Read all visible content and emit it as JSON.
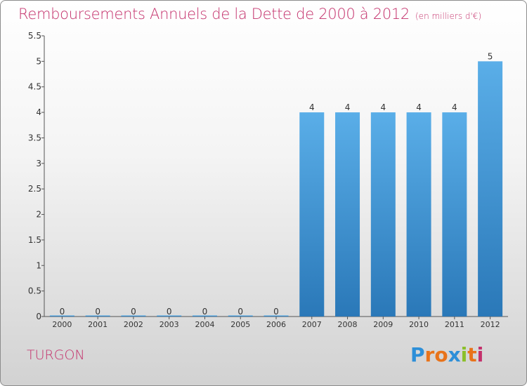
{
  "title": "Remboursements Annuels de la Dette de 2000 à 2012",
  "unit_note": "(en milliers d'€)",
  "commune": "TURGON",
  "logo_text": "Proxiti",
  "colors": {
    "title": "#c4306b",
    "bar_light": "#5aaee8",
    "bar_dark": "#2a78b8",
    "logo": [
      "#2d8fd8",
      "#e8731a",
      "#e8731a",
      "#2d8fd8",
      "#8bbf2a",
      "#e8731a",
      "#c4306b"
    ]
  },
  "chart_data": {
    "type": "bar",
    "categories": [
      "2000",
      "2001",
      "2002",
      "2003",
      "2004",
      "2005",
      "2006",
      "2007",
      "2008",
      "2009",
      "2010",
      "2011",
      "2012"
    ],
    "values": [
      0,
      0,
      0,
      0,
      0,
      0,
      0,
      4,
      4,
      4,
      4,
      4,
      5
    ],
    "value_labels": [
      "0",
      "0",
      "0",
      "0",
      "0",
      "0",
      "0",
      "4",
      "4",
      "4",
      "4",
      "4",
      "5"
    ],
    "ylim": [
      0,
      5.5
    ],
    "yticks": [
      0,
      0.5,
      1,
      1.5,
      2,
      2.5,
      3,
      3.5,
      4,
      4.5,
      5,
      5.5
    ],
    "ytick_labels": [
      "0",
      "0.5",
      "1",
      "1.5",
      "2",
      "2.5",
      "3",
      "3.5",
      "4",
      "4.5",
      "5",
      "5.5"
    ],
    "grid": false,
    "legend": "none"
  }
}
